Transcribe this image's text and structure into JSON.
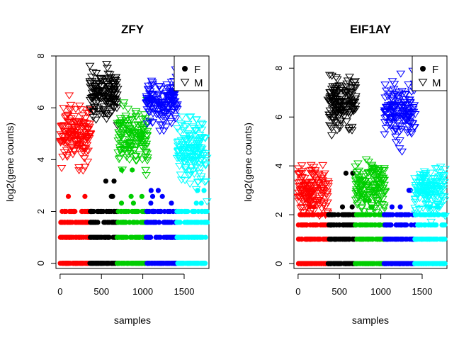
{
  "chart_data": [
    {
      "type": "scatter",
      "title": "ZFY",
      "xlabel": "samples",
      "ylabel": "log2(gene counts)",
      "xlim": [
        -50,
        1800
      ],
      "ylim": [
        -0.2,
        8
      ],
      "x_ticks": [
        0,
        500,
        1000,
        1500
      ],
      "y_ticks": [
        0,
        2,
        4,
        6,
        8
      ],
      "legend": {
        "position": "top-right",
        "entries": [
          {
            "label": "F",
            "marker": "filled-circle"
          },
          {
            "label": "M",
            "marker": "open-down-triangle"
          }
        ]
      },
      "groups": [
        {
          "color": "#ff0000",
          "x_range": [
            0,
            370
          ],
          "male_center": 4.9,
          "male_spread": 0.55,
          "female_levels": [
            0,
            1,
            1.58,
            2
          ],
          "female_outliers": [
            2.58
          ]
        },
        {
          "color": "#000000",
          "x_range": [
            360,
            700
          ],
          "male_center": 6.5,
          "male_spread": 0.45,
          "female_levels": [
            0,
            1,
            1.58,
            2
          ],
          "female_outliers": [
            2.58,
            3.17
          ]
        },
        {
          "color": "#00cd00",
          "x_range": [
            690,
            1060
          ],
          "male_center": 4.9,
          "male_spread": 0.55,
          "female_levels": [
            0,
            1,
            1.58,
            2
          ],
          "female_outliers": [
            2.58,
            2.32,
            3.6
          ]
        },
        {
          "color": "#0000ff",
          "x_range": [
            1040,
            1420
          ],
          "male_center": 6.2,
          "male_spread": 0.45,
          "female_levels": [
            0,
            1,
            1.58,
            2
          ],
          "female_outliers": [
            2.32,
            2.58,
            2.81
          ]
        },
        {
          "color": "#00ffff",
          "x_range": [
            1410,
            1780
          ],
          "male_center": 4.3,
          "male_spread": 0.6,
          "female_levels": [
            0,
            1,
            1.58,
            2
          ],
          "female_outliers": [
            2.32,
            2.81
          ]
        }
      ]
    },
    {
      "type": "scatter",
      "title": "EIF1AY",
      "xlabel": "samples",
      "ylabel": "log2(gene counts)",
      "xlim": [
        -50,
        1800
      ],
      "ylim": [
        -0.2,
        8.5
      ],
      "x_ticks": [
        0,
        500,
        1000,
        1500
      ],
      "y_ticks": [
        0,
        2,
        4,
        6,
        8
      ],
      "legend": {
        "position": "top-right",
        "entries": [
          {
            "label": "F",
            "marker": "filled-circle"
          },
          {
            "label": "M",
            "marker": "open-down-triangle"
          }
        ]
      },
      "groups": [
        {
          "color": "#ff0000",
          "x_range": [
            0,
            370
          ],
          "male_center": 3.0,
          "male_spread": 0.45,
          "female_levels": [
            0,
            1,
            1.58,
            2
          ],
          "female_outliers": [
            2.32
          ]
        },
        {
          "color": "#000000",
          "x_range": [
            360,
            700
          ],
          "male_center": 6.6,
          "male_spread": 0.55,
          "female_levels": [
            0,
            1,
            1.58,
            2
          ],
          "female_outliers": [
            2.32,
            3.7
          ]
        },
        {
          "color": "#00cd00",
          "x_range": [
            690,
            1060
          ],
          "male_center": 3.1,
          "male_spread": 0.5,
          "female_levels": [
            0,
            1,
            1.58,
            2
          ],
          "female_outliers": [
            2.32,
            2.58
          ]
        },
        {
          "color": "#0000ff",
          "x_range": [
            1040,
            1420
          ],
          "male_center": 6.2,
          "male_spread": 0.55,
          "female_levels": [
            0,
            1,
            1.58,
            2
          ],
          "female_outliers": [
            2.32,
            3.0
          ]
        },
        {
          "color": "#00ffff",
          "x_range": [
            1410,
            1780
          ],
          "male_center": 3.0,
          "male_spread": 0.45,
          "female_levels": [
            0,
            1,
            1.58,
            2
          ],
          "female_outliers": [
            2.32
          ]
        }
      ]
    }
  ]
}
